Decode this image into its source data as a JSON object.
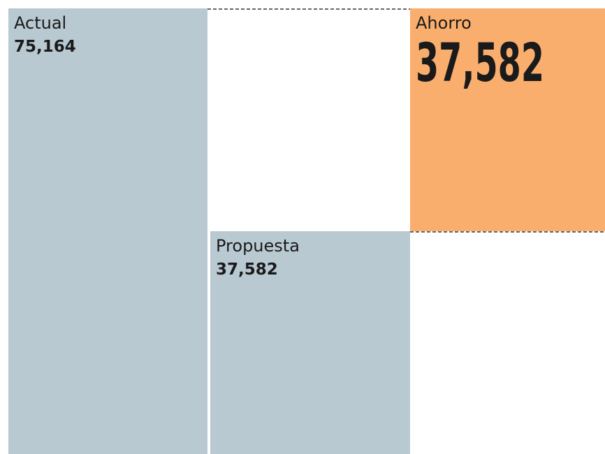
{
  "chart_data": {
    "type": "waterfall",
    "categories": [
      "Actual",
      "Propuesta",
      "Ahorro"
    ],
    "values": [
      75164,
      37582,
      37582
    ],
    "value_labels": [
      "75,164",
      "37,582",
      "37,582"
    ],
    "measure": [
      "absolute",
      "absolute",
      "relative"
    ],
    "colors": [
      "#b8c9d2",
      "#b8c9d2",
      "#f9ae6e"
    ]
  }
}
